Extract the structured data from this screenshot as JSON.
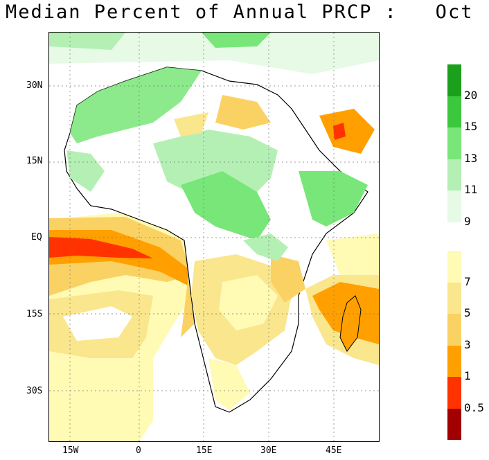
{
  "title": "Median Percent of Annual PRCP :   Oct",
  "map": {
    "lat_labels": [
      "30N",
      "15N",
      "EQ",
      "15S",
      "30S"
    ],
    "lon_labels": [
      "15W",
      "0",
      "15E",
      "30E",
      "45E"
    ]
  },
  "colorbar": {
    "upper": [
      {
        "label": "20",
        "color": "#1aa01a"
      },
      {
        "label": "15",
        "color": "#3cc83c"
      },
      {
        "label": "13",
        "color": "#78e678"
      },
      {
        "label": "11",
        "color": "#b4f0b4"
      },
      {
        "label": "9",
        "color": "#e6fae6"
      }
    ],
    "lower": [
      {
        "label": "7",
        "color": "#fffab4"
      },
      {
        "label": "5",
        "color": "#fae68c"
      },
      {
        "label": "3",
        "color": "#fad264"
      },
      {
        "label": "1",
        "color": "#ffa000"
      },
      {
        "label": "0.5",
        "color": "#ff3200"
      },
      {
        "label": "",
        "color": "#a00000"
      }
    ]
  }
}
